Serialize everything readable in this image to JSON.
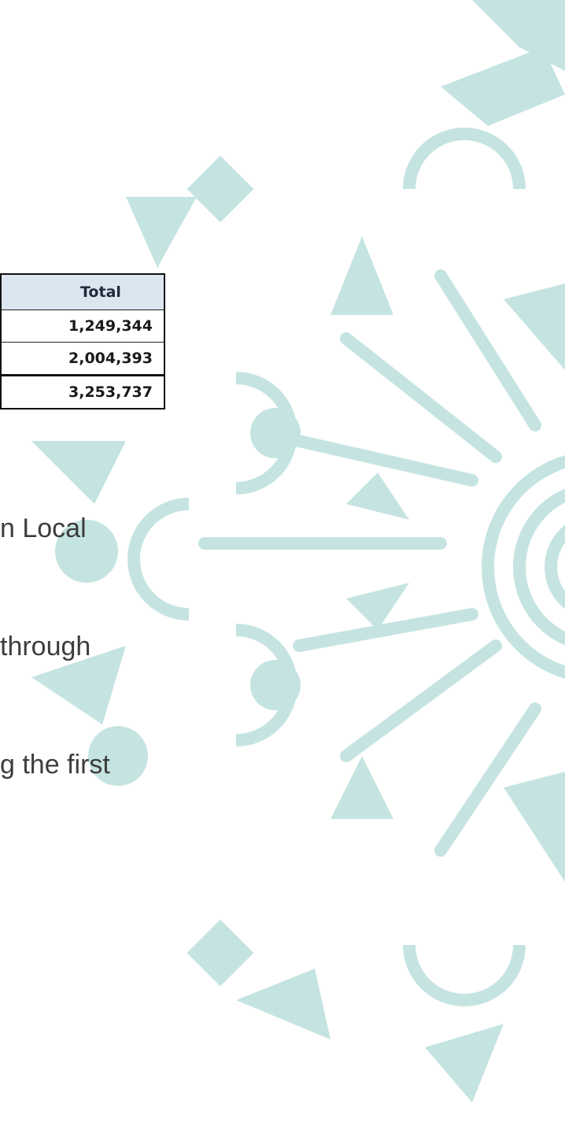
{
  "table": {
    "header": "Total",
    "rows": [
      "1,249,344",
      "2,004,393",
      "3,253,737"
    ]
  },
  "text_lines": [
    "n Local",
    "through",
    "g the first"
  ]
}
